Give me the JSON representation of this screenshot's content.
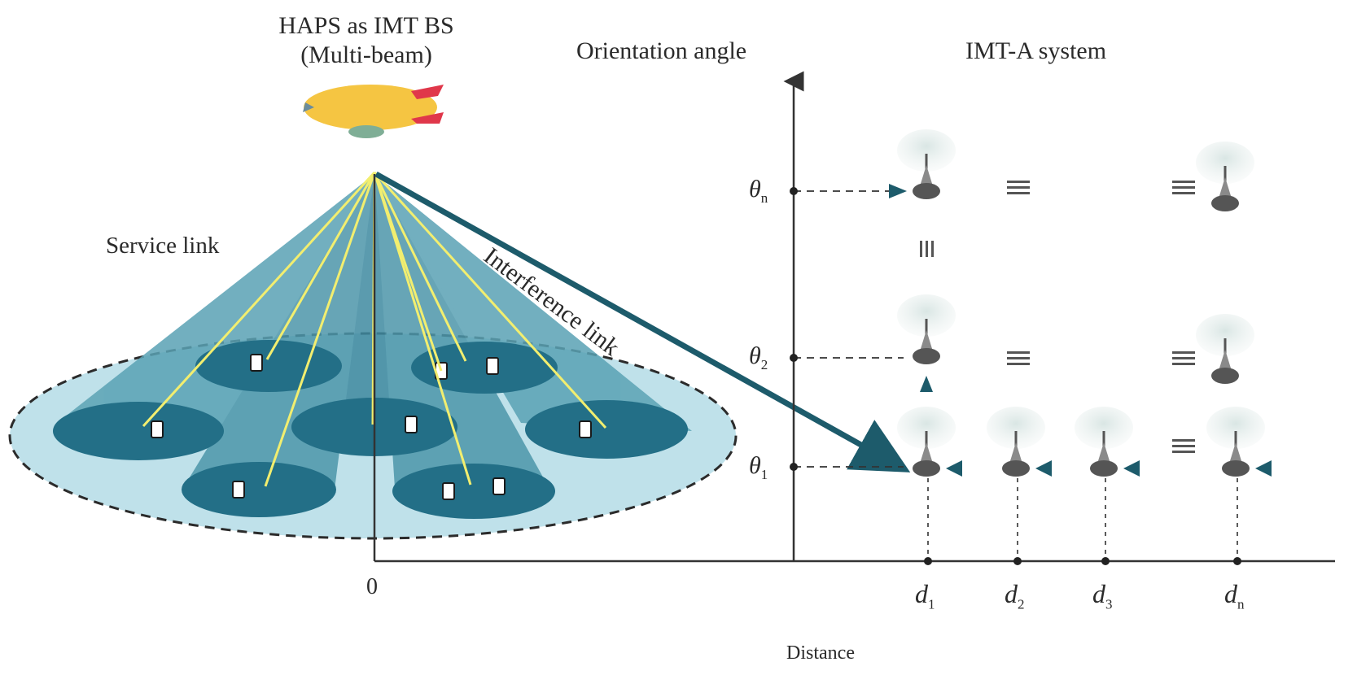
{
  "labels": {
    "haps_line1": "HAPS as IMT BS",
    "haps_line2": "(Multi-beam)",
    "orientation_axis": "Orientation angle",
    "imt_system": "IMT-A system",
    "service_link": "Service link",
    "interference_link": "Interference link",
    "origin": "0",
    "distance_axis": "Distance"
  },
  "theta_labels": [
    {
      "sym": "θ",
      "sub": "n"
    },
    {
      "sym": "θ",
      "sub": "2"
    },
    {
      "sym": "θ",
      "sub": "1"
    }
  ],
  "distance_labels": [
    {
      "sym": "d",
      "sub": "1"
    },
    {
      "sym": "d",
      "sub": "2"
    },
    {
      "sym": "d",
      "sub": "3"
    },
    {
      "sym": "d",
      "sub": "n"
    }
  ],
  "colors": {
    "airship_body": "#f5c542",
    "airship_fins": "#e0374a",
    "beam_light": "#5aa2b4",
    "beam_dark": "#1e6f88",
    "footprint": "#236f87",
    "coverage": "#bfe1ea",
    "links": "#f2ee6f",
    "interference_arrow": "#1d5b6b",
    "axis": "#333333"
  }
}
